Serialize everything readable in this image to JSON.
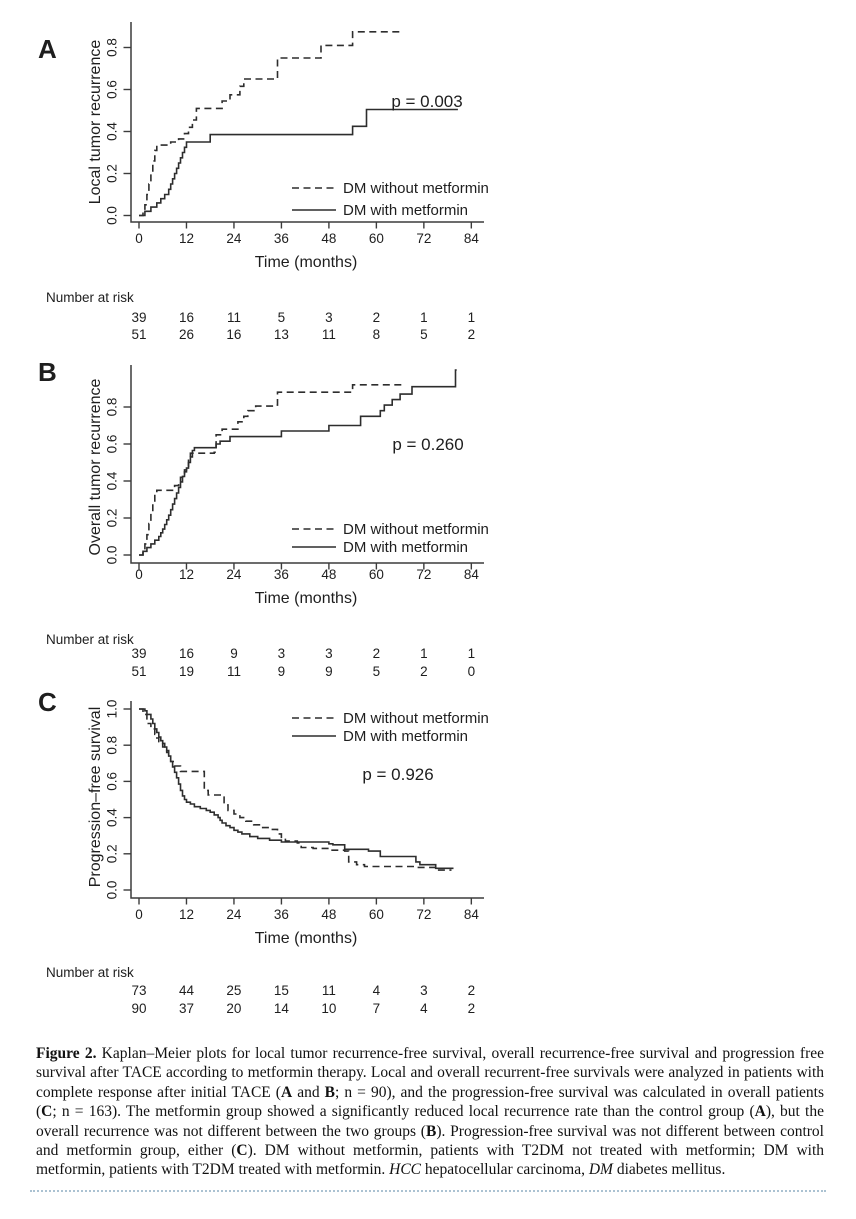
{
  "figure": {
    "caption_segments": [
      {
        "t": "Figure 2.",
        "b": true
      },
      {
        "t": "  Kaplan–Meier plots for local tumor recurrence-free survival, overall recurrence-free survival and progression free survival after TACE according to metformin therapy. Local and overall recurrent-free survivals were analyzed in patients with complete response after initial TACE ("
      },
      {
        "t": "A",
        "b": true
      },
      {
        "t": " and "
      },
      {
        "t": "B",
        "b": true
      },
      {
        "t": "; n = 90), and the progression-free survival was calculated in overall patients ("
      },
      {
        "t": "C",
        "b": true
      },
      {
        "t": "; n = 163). The metformin group showed a significantly reduced local recurrence rate than the control group ("
      },
      {
        "t": "A",
        "b": true
      },
      {
        "t": "), but the overall recurrence was not different between the two groups ("
      },
      {
        "t": "B",
        "b": true
      },
      {
        "t": "). Progression-free survival was not different between control and metformin group, either ("
      },
      {
        "t": "C",
        "b": true
      },
      {
        "t": "). DM without metformin, patients with T2DM not treated with metformin; DM with metformin, patients with T2DM treated with metformin. "
      },
      {
        "t": "HCC",
        "i": true
      },
      {
        "t": " hepatocellular carcinoma, "
      },
      {
        "t": "DM",
        "i": true
      },
      {
        "t": " diabetes mellitus."
      }
    ]
  },
  "chart_data": [
    {
      "type": "line",
      "subtype": "kaplan-meier-step",
      "panel_label": "A",
      "ylabel": "Local tumor recurrence",
      "xlabel": "Time (months)",
      "p_value": "p = 0.003",
      "x_ticks": [
        0,
        12,
        24,
        36,
        48,
        60,
        72,
        84
      ],
      "y_ticks": [
        0.0,
        0.2,
        0.4,
        0.6,
        0.8
      ],
      "xlim": [
        0,
        84
      ],
      "ylim": [
        0,
        0.93
      ],
      "legend_position": "bottom-right-inside",
      "legend": [
        {
          "label": "DM without metformin",
          "style": "dashed"
        },
        {
          "label": "DM with metformin",
          "style": "solid"
        }
      ],
      "series": [
        {
          "name": "DM without metformin",
          "style": "dashed",
          "t_end": 66.5,
          "steps": [
            [
              0,
              0
            ],
            [
              1,
              0.026
            ],
            [
              1.5,
              0.051
            ],
            [
              2,
              0.1
            ],
            [
              2.5,
              0.15
            ],
            [
              3,
              0.205
            ],
            [
              3.5,
              0.26
            ],
            [
              4,
              0.31
            ],
            [
              4.5,
              0.335
            ],
            [
              8,
              0.35
            ],
            [
              10,
              0.365
            ],
            [
              11.5,
              0.39
            ],
            [
              12.5,
              0.42
            ],
            [
              13.5,
              0.455
            ],
            [
              14.5,
              0.51
            ],
            [
              21,
              0.545
            ],
            [
              23,
              0.575
            ],
            [
              25.5,
              0.615
            ],
            [
              26.5,
              0.65
            ],
            [
              35,
              0.75
            ],
            [
              46,
              0.81
            ],
            [
              54,
              0.875
            ]
          ]
        },
        {
          "name": "DM with metformin",
          "style": "solid",
          "t_end": 80.6,
          "steps": [
            [
              0,
              0
            ],
            [
              1.5,
              0.02
            ],
            [
              3,
              0.04
            ],
            [
              4.5,
              0.06
            ],
            [
              5.5,
              0.08
            ],
            [
              6.5,
              0.1
            ],
            [
              7.5,
              0.125
            ],
            [
              8,
              0.15
            ],
            [
              8.5,
              0.175
            ],
            [
              9,
              0.2
            ],
            [
              9.5,
              0.225
            ],
            [
              10,
              0.25
            ],
            [
              10.5,
              0.275
            ],
            [
              11,
              0.3
            ],
            [
              11.5,
              0.325
            ],
            [
              12,
              0.35
            ],
            [
              18,
              0.385
            ],
            [
              54,
              0.425
            ],
            [
              57.5,
              0.505
            ]
          ]
        }
      ],
      "number_at_risk": {
        "label": "Number at risk",
        "rows": [
          {
            "group": "DM without metformin",
            "counts": [
              39,
              16,
              11,
              5,
              3,
              2,
              1,
              1
            ]
          },
          {
            "group": "DM with metformin",
            "counts": [
              51,
              26,
              16,
              13,
              11,
              8,
              5,
              2
            ]
          }
        ]
      }
    },
    {
      "type": "line",
      "subtype": "kaplan-meier-step",
      "panel_label": "B",
      "ylabel": "Overall tumor recurrence",
      "xlabel": "Time (months)",
      "p_value": "p = 0.260",
      "x_ticks": [
        0,
        12,
        24,
        36,
        48,
        60,
        72,
        84
      ],
      "y_ticks": [
        0.0,
        0.2,
        0.4,
        0.6,
        0.8
      ],
      "xlim": [
        0,
        84
      ],
      "ylim": [
        0,
        1.02
      ],
      "legend_position": "bottom-right-inside",
      "legend": [
        {
          "label": "DM without metformin",
          "style": "dashed"
        },
        {
          "label": "DM with metformin",
          "style": "solid"
        }
      ],
      "series": [
        {
          "name": "DM without metformin",
          "style": "dashed",
          "t_end": 66.7,
          "steps": [
            [
              0,
              0
            ],
            [
              1,
              0.03
            ],
            [
              1.5,
              0.06
            ],
            [
              2,
              0.11
            ],
            [
              2.5,
              0.17
            ],
            [
              3,
              0.225
            ],
            [
              3.5,
              0.28
            ],
            [
              4,
              0.33
            ],
            [
              4.5,
              0.35
            ],
            [
              9,
              0.375
            ],
            [
              10,
              0.4
            ],
            [
              10.5,
              0.42
            ],
            [
              11,
              0.44
            ],
            [
              11.5,
              0.46
            ],
            [
              12,
              0.48
            ],
            [
              12.5,
              0.52
            ],
            [
              13,
              0.55
            ],
            [
              19,
              0.555
            ],
            [
              19.5,
              0.65
            ],
            [
              21,
              0.68
            ],
            [
              25,
              0.72
            ],
            [
              26.5,
              0.75
            ],
            [
              27.5,
              0.78
            ],
            [
              29.5,
              0.805
            ],
            [
              34,
              0.81
            ],
            [
              35,
              0.88
            ],
            [
              54,
              0.92
            ]
          ]
        },
        {
          "name": "DM with metformin",
          "style": "solid",
          "t_end": 80.3,
          "steps": [
            [
              0,
              0
            ],
            [
              1,
              0.02
            ],
            [
              2,
              0.04
            ],
            [
              3,
              0.06
            ],
            [
              4,
              0.08
            ],
            [
              5,
              0.1
            ],
            [
              5.5,
              0.12
            ],
            [
              6,
              0.14
            ],
            [
              6.5,
              0.165
            ],
            [
              7,
              0.19
            ],
            [
              7.5,
              0.215
            ],
            [
              8,
              0.245
            ],
            [
              8.5,
              0.275
            ],
            [
              9,
              0.305
            ],
            [
              9.5,
              0.335
            ],
            [
              10,
              0.365
            ],
            [
              10.5,
              0.395
            ],
            [
              11,
              0.425
            ],
            [
              11.5,
              0.45
            ],
            [
              12,
              0.47
            ],
            [
              12.5,
              0.5
            ],
            [
              13,
              0.53
            ],
            [
              13.5,
              0.565
            ],
            [
              14,
              0.58
            ],
            [
              19.5,
              0.6
            ],
            [
              20.5,
              0.615
            ],
            [
              23,
              0.64
            ],
            [
              36,
              0.67
            ],
            [
              48,
              0.7
            ],
            [
              56,
              0.75
            ],
            [
              61,
              0.78
            ],
            [
              62,
              0.81
            ],
            [
              64,
              0.84
            ],
            [
              66,
              0.87
            ],
            [
              69,
              0.91
            ],
            [
              80,
              1.0
            ]
          ]
        }
      ],
      "number_at_risk": {
        "label": "Number at risk",
        "rows": [
          {
            "group": "DM without metformin",
            "counts": [
              39,
              16,
              9,
              3,
              3,
              2,
              1,
              1
            ]
          },
          {
            "group": "DM with metformin",
            "counts": [
              51,
              19,
              11,
              9,
              9,
              5,
              2,
              0
            ]
          }
        ]
      }
    },
    {
      "type": "line",
      "subtype": "kaplan-meier-step",
      "panel_label": "C",
      "ylabel": "Progression–free survival",
      "xlabel": "Time (months)",
      "p_value": "p = 0.926",
      "x_ticks": [
        0,
        12,
        24,
        36,
        48,
        60,
        72,
        84
      ],
      "y_ticks": [
        0.0,
        0.2,
        0.4,
        0.6,
        0.8,
        1.0
      ],
      "xlim": [
        0,
        84
      ],
      "ylim": [
        0,
        1.05
      ],
      "legend_position": "top-right-inside",
      "legend": [
        {
          "label": "DM without metformin",
          "style": "dashed"
        },
        {
          "label": "DM with metformin",
          "style": "solid"
        }
      ],
      "series": [
        {
          "name": "DM without metformin",
          "style": "dashed",
          "t_end": 79,
          "steps": [
            [
              0,
              1.0
            ],
            [
              1,
              0.97
            ],
            [
              2,
              0.92
            ],
            [
              3,
              0.89
            ],
            [
              4,
              0.86
            ],
            [
              4.5,
              0.84
            ],
            [
              5,
              0.82
            ],
            [
              6,
              0.79
            ],
            [
              7,
              0.76
            ],
            [
              7.5,
              0.73
            ],
            [
              8,
              0.71
            ],
            [
              9,
              0.685
            ],
            [
              10.5,
              0.655
            ],
            [
              16.5,
              0.55
            ],
            [
              17.5,
              0.525
            ],
            [
              21.5,
              0.47
            ],
            [
              22.5,
              0.44
            ],
            [
              24,
              0.42
            ],
            [
              25.5,
              0.4
            ],
            [
              27,
              0.38
            ],
            [
              29,
              0.36
            ],
            [
              31,
              0.345
            ],
            [
              33,
              0.335
            ],
            [
              35,
              0.31
            ],
            [
              36,
              0.285
            ],
            [
              37,
              0.27
            ],
            [
              40,
              0.26
            ],
            [
              41,
              0.235
            ],
            [
              44,
              0.23
            ],
            [
              48,
              0.22
            ],
            [
              52,
              0.215
            ],
            [
              53,
              0.155
            ],
            [
              55,
              0.14
            ],
            [
              57,
              0.13
            ],
            [
              70,
              0.125
            ],
            [
              75,
              0.11
            ]
          ]
        },
        {
          "name": "DM with metformin",
          "style": "solid",
          "t_end": 79.5,
          "steps": [
            [
              0,
              1.0
            ],
            [
              1.5,
              0.99
            ],
            [
              2,
              0.97
            ],
            [
              3,
              0.945
            ],
            [
              3.5,
              0.92
            ],
            [
              4,
              0.89
            ],
            [
              4.5,
              0.87
            ],
            [
              5,
              0.845
            ],
            [
              5.5,
              0.825
            ],
            [
              6,
              0.81
            ],
            [
              6.5,
              0.79
            ],
            [
              7,
              0.77
            ],
            [
              7.5,
              0.74
            ],
            [
              8,
              0.71
            ],
            [
              8.5,
              0.68
            ],
            [
              9,
              0.65
            ],
            [
              9.5,
              0.62
            ],
            [
              10,
              0.585
            ],
            [
              10.5,
              0.55
            ],
            [
              11,
              0.52
            ],
            [
              11.5,
              0.5
            ],
            [
              12,
              0.485
            ],
            [
              13,
              0.475
            ],
            [
              14,
              0.46
            ],
            [
              15.5,
              0.45
            ],
            [
              17,
              0.44
            ],
            [
              18,
              0.43
            ],
            [
              19,
              0.415
            ],
            [
              20,
              0.4
            ],
            [
              20.5,
              0.385
            ],
            [
              21,
              0.37
            ],
            [
              22,
              0.355
            ],
            [
              23,
              0.345
            ],
            [
              24,
              0.33
            ],
            [
              25,
              0.32
            ],
            [
              26,
              0.31
            ],
            [
              28,
              0.295
            ],
            [
              30,
              0.285
            ],
            [
              33,
              0.275
            ],
            [
              36,
              0.265
            ],
            [
              48,
              0.255
            ],
            [
              49,
              0.25
            ],
            [
              52,
              0.225
            ],
            [
              58,
              0.215
            ],
            [
              61,
              0.185
            ],
            [
              70,
              0.155
            ],
            [
              71,
              0.14
            ],
            [
              75,
              0.12
            ]
          ]
        }
      ],
      "number_at_risk": {
        "label": "Number at risk",
        "rows": [
          {
            "group": "DM without metformin",
            "counts": [
              73,
              44,
              25,
              15,
              11,
              4,
              3,
              2
            ]
          },
          {
            "group": "DM with metformin",
            "counts": [
              90,
              37,
              20,
              14,
              10,
              7,
              4,
              2
            ]
          }
        ]
      }
    }
  ]
}
